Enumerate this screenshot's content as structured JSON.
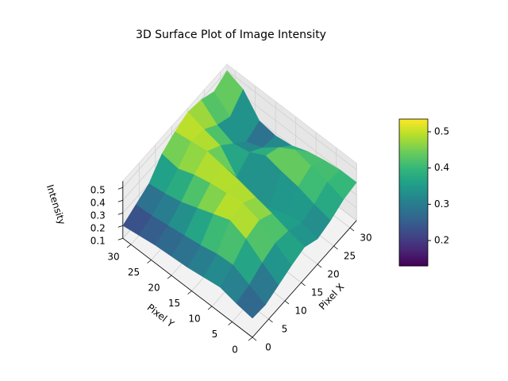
{
  "chart_data": {
    "type": "surface",
    "title": "3D Surface Plot of Image Intensity",
    "x_label": "Pixel X",
    "y_label": "Pixel Y",
    "z_label": "Intensity",
    "x": [
      0,
      4,
      8,
      12,
      16,
      20,
      24,
      28,
      32
    ],
    "y": [
      0,
      4,
      8,
      12,
      16,
      20,
      24,
      28,
      32
    ],
    "z": [
      [
        0.25,
        0.24,
        0.28,
        0.32,
        0.35,
        0.3,
        0.33,
        0.38,
        0.4
      ],
      [
        0.27,
        0.3,
        0.36,
        0.4,
        0.38,
        0.33,
        0.36,
        0.42,
        0.4
      ],
      [
        0.3,
        0.36,
        0.45,
        0.48,
        0.42,
        0.3,
        0.4,
        0.45,
        0.38
      ],
      [
        0.28,
        0.35,
        0.5,
        0.52,
        0.45,
        0.25,
        0.42,
        0.48,
        0.35
      ],
      [
        0.26,
        0.32,
        0.45,
        0.5,
        0.48,
        0.22,
        0.45,
        0.4,
        0.3
      ],
      [
        0.25,
        0.3,
        0.4,
        0.48,
        0.5,
        0.3,
        0.38,
        0.3,
        0.28
      ],
      [
        0.24,
        0.28,
        0.35,
        0.45,
        0.52,
        0.45,
        0.35,
        0.25,
        0.3
      ],
      [
        0.22,
        0.26,
        0.32,
        0.4,
        0.5,
        0.48,
        0.4,
        0.35,
        0.45
      ],
      [
        0.2,
        0.25,
        0.3,
        0.42,
        0.48,
        0.52,
        0.5,
        0.45,
        0.5
      ]
    ],
    "xlim": [
      0,
      32
    ],
    "ylim": [
      0,
      32
    ],
    "zlim": [
      0.1,
      0.55
    ],
    "xticks": [
      0,
      5,
      10,
      15,
      20,
      25,
      30
    ],
    "yticks": [
      0,
      5,
      10,
      15,
      20,
      25,
      30
    ],
    "zticks": [
      0.1,
      0.2,
      0.3,
      0.4,
      0.5
    ],
    "colormap": "viridis",
    "clim": [
      0.13,
      0.535
    ],
    "colorbar_ticks": [
      0.2,
      0.3,
      0.4,
      0.5
    ]
  }
}
